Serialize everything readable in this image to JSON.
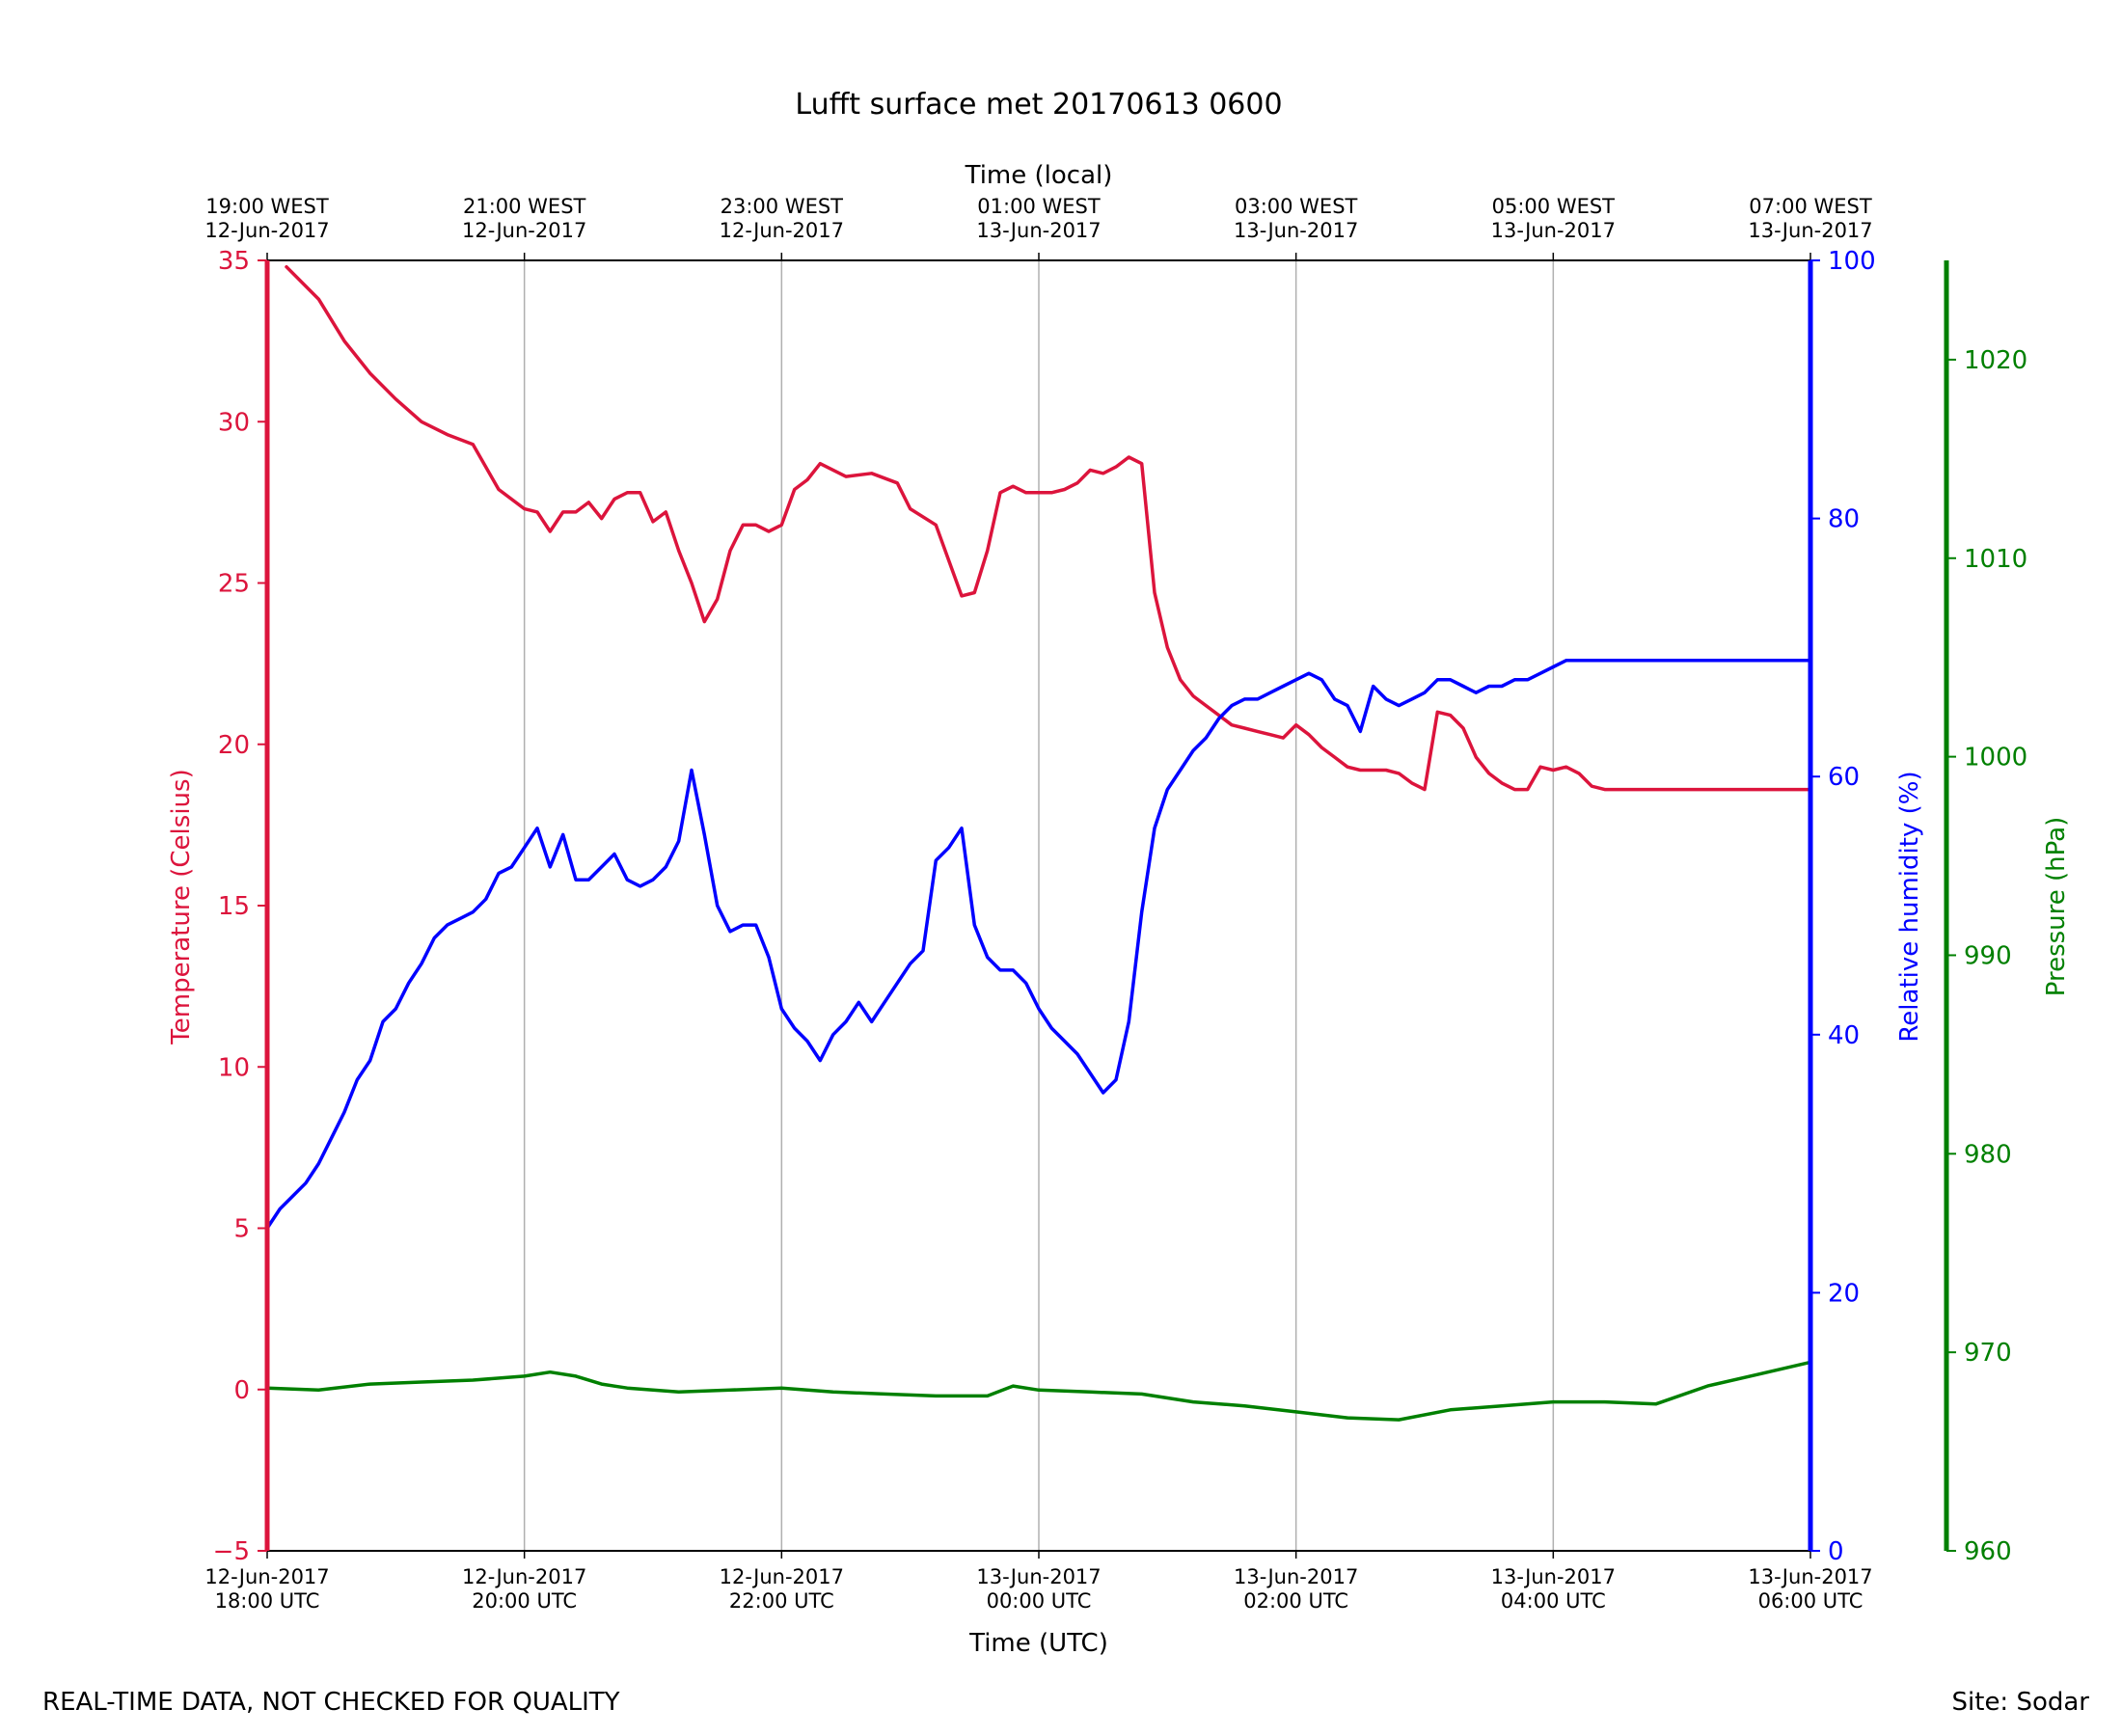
{
  "chart_data": {
    "type": "line",
    "title": "Lufft surface met 20170613 0600",
    "footer_left": "REAL-TIME DATA, NOT CHECKED FOR QUALITY",
    "footer_right": "Site: Sodar",
    "grid": "vertical",
    "x_axis": {
      "label": "Time (UTC)",
      "unit": "hours since 12-Jun-2017 18:00 UTC",
      "xlim": [
        0,
        12
      ],
      "ticks": [
        {
          "x": 0,
          "line1": "12-Jun-2017",
          "line2": "18:00 UTC"
        },
        {
          "x": 2,
          "line1": "12-Jun-2017",
          "line2": "20:00 UTC"
        },
        {
          "x": 4,
          "line1": "12-Jun-2017",
          "line2": "22:00 UTC"
        },
        {
          "x": 6,
          "line1": "13-Jun-2017",
          "line2": "00:00 UTC"
        },
        {
          "x": 8,
          "line1": "13-Jun-2017",
          "line2": "02:00 UTC"
        },
        {
          "x": 10,
          "line1": "13-Jun-2017",
          "line2": "04:00 UTC"
        },
        {
          "x": 12,
          "line1": "13-Jun-2017",
          "line2": "06:00 UTC"
        }
      ]
    },
    "x_axis_top": {
      "label": "Time (local)",
      "ticks": [
        {
          "x": 0,
          "line1": "19:00 WEST",
          "line2": "12-Jun-2017"
        },
        {
          "x": 2,
          "line1": "21:00 WEST",
          "line2": "12-Jun-2017"
        },
        {
          "x": 4,
          "line1": "23:00 WEST",
          "line2": "12-Jun-2017"
        },
        {
          "x": 6,
          "line1": "01:00 WEST",
          "line2": "13-Jun-2017"
        },
        {
          "x": 8,
          "line1": "03:00 WEST",
          "line2": "13-Jun-2017"
        },
        {
          "x": 10,
          "line1": "05:00 WEST",
          "line2": "13-Jun-2017"
        },
        {
          "x": 12,
          "line1": "07:00 WEST",
          "line2": "13-Jun-2017"
        }
      ]
    },
    "y_axes": [
      {
        "id": "temp",
        "label": "Temperature (Celsius)",
        "color": "#dc143c",
        "ylim": [
          -5,
          35
        ],
        "ticks": [
          [
            -5,
            "−5"
          ],
          [
            0,
            "0"
          ],
          [
            5,
            "5"
          ],
          [
            10,
            "10"
          ],
          [
            15,
            "15"
          ],
          [
            20,
            "20"
          ],
          [
            25,
            "25"
          ],
          [
            30,
            "30"
          ],
          [
            35,
            "35"
          ]
        ]
      },
      {
        "id": "rh",
        "label": "Relative humidity (%)",
        "color": "#0000ff",
        "ylim": [
          0,
          100
        ],
        "ticks": [
          [
            0,
            "0"
          ],
          [
            20,
            "20"
          ],
          [
            40,
            "40"
          ],
          [
            60,
            "60"
          ],
          [
            80,
            "80"
          ],
          [
            100,
            "100"
          ]
        ]
      },
      {
        "id": "pres",
        "label": "Pressure (hPa)",
        "color": "#008000",
        "ylim": [
          960,
          1025
        ],
        "ticks": [
          [
            960,
            "960"
          ],
          [
            970,
            "970"
          ],
          [
            980,
            "980"
          ],
          [
            990,
            "990"
          ],
          [
            1000,
            "1000"
          ],
          [
            1010,
            "1010"
          ],
          [
            1020,
            "1020"
          ]
        ]
      }
    ],
    "series": [
      {
        "name": "Temperature (Celsius)",
        "axis": "temp",
        "color": "#dc143c",
        "x": [
          0.15,
          0.4,
          0.6,
          0.8,
          1.0,
          1.2,
          1.4,
          1.6,
          1.8,
          2.0,
          2.1,
          2.2,
          2.3,
          2.4,
          2.5,
          2.6,
          2.7,
          2.8,
          2.9,
          3.0,
          3.1,
          3.2,
          3.3,
          3.4,
          3.5,
          3.6,
          3.7,
          3.8,
          3.9,
          4.0,
          4.1,
          4.2,
          4.3,
          4.5,
          4.7,
          4.9,
          5.0,
          5.2,
          5.4,
          5.5,
          5.6,
          5.7,
          5.8,
          5.9,
          6.0,
          6.1,
          6.2,
          6.3,
          6.4,
          6.5,
          6.6,
          6.7,
          6.8,
          6.9,
          7.0,
          7.1,
          7.2,
          7.3,
          7.4,
          7.5,
          7.6,
          7.7,
          7.8,
          7.9,
          8.0,
          8.1,
          8.2,
          8.3,
          8.4,
          8.5,
          8.6,
          8.7,
          8.8,
          8.9,
          9.0,
          9.1,
          9.2,
          9.3,
          9.4,
          9.5,
          9.6,
          9.7,
          9.8,
          9.9,
          10.0,
          10.1,
          10.2,
          10.3,
          10.4,
          10.5,
          10.6,
          10.7,
          10.8,
          10.9,
          11.0,
          11.2,
          11.4,
          11.6,
          11.8,
          12.0
        ],
        "y": [
          34.8,
          33.8,
          32.5,
          31.5,
          30.7,
          30.0,
          29.6,
          29.3,
          27.9,
          27.3,
          27.2,
          26.6,
          27.2,
          27.2,
          27.5,
          27.0,
          27.6,
          27.8,
          27.8,
          26.9,
          27.2,
          26.0,
          25.0,
          23.8,
          24.5,
          26.0,
          26.8,
          26.8,
          26.6,
          26.8,
          27.9,
          28.2,
          28.7,
          28.3,
          28.4,
          28.1,
          27.3,
          26.8,
          24.6,
          24.7,
          26.0,
          27.8,
          28.0,
          27.8,
          27.8,
          27.8,
          27.9,
          28.1,
          28.5,
          28.4,
          28.6,
          28.9,
          28.7,
          24.7,
          23.0,
          22.0,
          21.5,
          21.2,
          20.9,
          20.6,
          20.5,
          20.4,
          20.3,
          20.2,
          20.6,
          20.3,
          19.9,
          19.6,
          19.3,
          19.2,
          19.2,
          19.2,
          19.1,
          18.8,
          18.6,
          21.0,
          20.9,
          20.5,
          19.6,
          19.1,
          18.8,
          18.6,
          18.6,
          19.3,
          19.2,
          19.3,
          19.1,
          18.7,
          18.6,
          18.6,
          18.6,
          18.6,
          18.6,
          18.6,
          18.6,
          18.6,
          18.6,
          18.6,
          18.6,
          18.6
        ]
      },
      {
        "name": "Relative humidity (%)",
        "axis": "rh",
        "color": "#0000ff",
        "x": [
          0.0,
          0.1,
          0.2,
          0.3,
          0.4,
          0.5,
          0.6,
          0.7,
          0.8,
          0.9,
          1.0,
          1.1,
          1.2,
          1.3,
          1.4,
          1.5,
          1.6,
          1.7,
          1.8,
          1.9,
          2.0,
          2.1,
          2.2,
          2.3,
          2.4,
          2.5,
          2.6,
          2.7,
          2.8,
          2.9,
          3.0,
          3.1,
          3.2,
          3.3,
          3.4,
          3.5,
          3.6,
          3.7,
          3.8,
          3.9,
          4.0,
          4.1,
          4.2,
          4.3,
          4.4,
          4.5,
          4.6,
          4.7,
          4.8,
          4.9,
          5.0,
          5.1,
          5.2,
          5.3,
          5.4,
          5.5,
          5.6,
          5.7,
          5.8,
          5.9,
          6.0,
          6.1,
          6.2,
          6.3,
          6.4,
          6.5,
          6.6,
          6.7,
          6.8,
          6.9,
          7.0,
          7.1,
          7.2,
          7.3,
          7.4,
          7.5,
          7.6,
          7.7,
          7.8,
          7.9,
          8.0,
          8.1,
          8.2,
          8.3,
          8.4,
          8.5,
          8.6,
          8.7,
          8.8,
          8.9,
          9.0,
          9.1,
          9.2,
          9.3,
          9.4,
          9.5,
          9.6,
          9.7,
          9.8,
          9.9,
          10.0,
          10.1,
          10.2,
          10.3,
          10.4,
          10.5,
          10.6,
          10.7,
          10.8,
          10.9,
          11.0,
          11.2,
          11.4,
          11.6,
          11.8,
          12.0
        ],
        "y": [
          25.0,
          26.5,
          27.5,
          28.5,
          30.0,
          32.0,
          34.0,
          36.5,
          38.0,
          41.0,
          42.0,
          44.0,
          45.5,
          47.5,
          48.5,
          49.0,
          49.5,
          50.5,
          52.5,
          53.0,
          54.5,
          56.0,
          53.0,
          55.5,
          52.0,
          52.0,
          53.0,
          54.0,
          52.0,
          51.5,
          52.0,
          53.0,
          55.0,
          60.5,
          55.5,
          50.0,
          48.0,
          48.5,
          48.5,
          46.0,
          42.0,
          40.5,
          39.5,
          38.0,
          40.0,
          41.0,
          42.5,
          41.0,
          42.5,
          44.0,
          45.5,
          46.5,
          53.5,
          54.5,
          56.0,
          48.5,
          46.0,
          45.0,
          45.0,
          44.0,
          42.0,
          40.5,
          39.5,
          38.5,
          37.0,
          35.5,
          36.5,
          41.0,
          49.5,
          56.0,
          59.0,
          60.5,
          62.0,
          63.0,
          64.5,
          65.5,
          66.0,
          66.0,
          66.5,
          67.0,
          67.5,
          68.0,
          67.5,
          66.0,
          65.5,
          63.5,
          67.0,
          66.0,
          65.5,
          66.0,
          66.5,
          67.5,
          67.5,
          67.0,
          66.5,
          67.0,
          67.0,
          67.5,
          67.5,
          68.0,
          68.5,
          69.0,
          69.0,
          69.0,
          69.0,
          69.0,
          69.0,
          69.0,
          69.0,
          69.0,
          69.0,
          69.0,
          69.0,
          69.0,
          69.0,
          69.0
        ]
      },
      {
        "name": "Pressure (hPa)",
        "axis": "pres",
        "color": "#008000",
        "x": [
          0.0,
          0.4,
          0.8,
          1.2,
          1.6,
          2.0,
          2.2,
          2.4,
          2.6,
          2.8,
          3.2,
          3.6,
          4.0,
          4.4,
          4.8,
          5.2,
          5.6,
          5.8,
          6.0,
          6.4,
          6.8,
          7.2,
          7.6,
          8.0,
          8.4,
          8.8,
          9.2,
          9.6,
          10.0,
          10.4,
          10.8,
          11.2,
          11.6,
          12.0
        ],
        "y": [
          968.2,
          968.1,
          968.4,
          968.5,
          968.6,
          968.8,
          969.0,
          968.8,
          968.4,
          968.2,
          968.0,
          968.1,
          968.2,
          968.0,
          967.9,
          967.8,
          967.8,
          968.3,
          968.1,
          968.0,
          967.9,
          967.5,
          967.3,
          967.0,
          966.7,
          966.6,
          967.1,
          967.3,
          967.5,
          967.5,
          967.4,
          968.3,
          968.9,
          969.5
        ]
      }
    ]
  }
}
